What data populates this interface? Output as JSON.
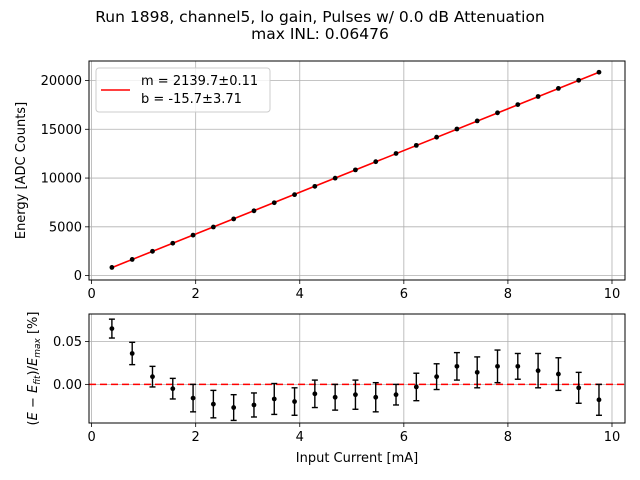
{
  "figure": {
    "title_line1": "Run 1898, channel5, lo gain, Pulses w/ 0.0 dB Attenuation",
    "title_line2": "max INL: 0.06476"
  },
  "colors": {
    "fit_line": "#ff0000",
    "points": "#000000",
    "grid": "#b0b0b0",
    "zero_line": "#ff0000"
  },
  "chart_data": [
    {
      "type": "line",
      "title": "",
      "xlabel": "",
      "ylabel": "Energy [ADC Counts]",
      "xlim": [
        -0.05,
        10.25
      ],
      "ylim": [
        -450,
        22000
      ],
      "xticks": [
        0,
        2,
        4,
        6,
        8,
        10
      ],
      "yticks": [
        0,
        5000,
        10000,
        15000,
        20000
      ],
      "grid": true,
      "legend": {
        "placement": "top-left",
        "entries": [
          "m = 2139.7±0.11",
          "b = -15.7±3.71"
        ]
      },
      "fit": {
        "slope": 2139.7,
        "intercept": -15.7
      },
      "series": [
        {
          "kind": "points",
          "x": [
            0.39,
            0.78,
            1.17,
            1.56,
            1.95,
            2.34,
            2.73,
            3.12,
            3.51,
            3.9,
            4.29,
            4.68,
            5.07,
            5.46,
            5.85,
            6.24,
            6.63,
            7.02,
            7.41,
            7.8,
            8.19,
            8.58,
            8.97,
            9.36,
            9.75
          ],
          "y": [
            840,
            1660,
            2490,
            3320,
            4150,
            4980,
            5810,
            6640,
            7470,
            8300,
            9150,
            9990,
            10840,
            11680,
            12520,
            13350,
            14190,
            15030,
            15860,
            16690,
            17530,
            18360,
            19190,
            20020,
            20850
          ]
        }
      ]
    },
    {
      "type": "scatter",
      "title": "",
      "xlabel": "Input Current [mA]",
      "ylabel": "(E − E_fit)/E_max [%]",
      "xlim": [
        -0.05,
        10.25
      ],
      "ylim": [
        -0.045,
        0.082
      ],
      "xticks": [
        0,
        2,
        4,
        6,
        8,
        10
      ],
      "yticks": [
        0.0,
        0.05
      ],
      "ytick_labels": [
        "0.00",
        "0.05"
      ],
      "grid": true,
      "reference_line": {
        "y": 0.0,
        "style": "dashed"
      },
      "series": [
        {
          "kind": "errorbar",
          "x": [
            0.39,
            0.78,
            1.17,
            1.56,
            1.95,
            2.34,
            2.73,
            3.12,
            3.51,
            3.9,
            4.29,
            4.68,
            5.07,
            5.46,
            5.85,
            6.24,
            6.63,
            7.02,
            7.41,
            7.8,
            8.19,
            8.58,
            8.97,
            9.36,
            9.75
          ],
          "y": [
            0.065,
            0.036,
            0.009,
            -0.005,
            -0.016,
            -0.023,
            -0.027,
            -0.024,
            -0.017,
            -0.02,
            -0.011,
            -0.015,
            -0.012,
            -0.015,
            -0.012,
            -0.003,
            0.009,
            0.021,
            0.014,
            0.021,
            0.021,
            0.016,
            0.012,
            -0.004,
            -0.018
          ],
          "yerr": [
            0.011,
            0.013,
            0.012,
            0.012,
            0.016,
            0.016,
            0.015,
            0.014,
            0.018,
            0.016,
            0.016,
            0.015,
            0.017,
            0.017,
            0.012,
            0.016,
            0.015,
            0.016,
            0.018,
            0.019,
            0.015,
            0.02,
            0.019,
            0.018,
            0.018
          ]
        }
      ]
    }
  ]
}
